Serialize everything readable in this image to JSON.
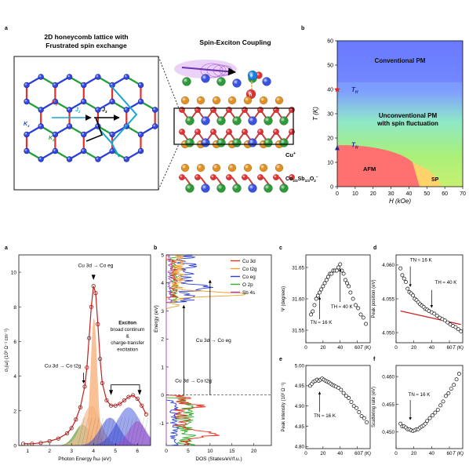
{
  "top": {
    "panel_a_label": "a",
    "panel_b_label": "b",
    "lattice_title_line1": "2D honeycomb lattice with",
    "lattice_title_line2": "Frustrated spin exchange",
    "coupling_title": "Spin-Exciton Coupling",
    "bond_labels": [
      "K",
      "J",
      "J",
      "K",
      "K"
    ],
    "bond_subs": [
      "y",
      "2",
      "3",
      "x",
      "z"
    ],
    "cu_label": "Cu",
    "cu_charge": "+",
    "layer_label": "Co",
    "layer_rest": "Sb",
    "layer_o": "O",
    "exciton_e": "e",
    "exciton_h": "h"
  },
  "phase": {
    "ylabel": "T (K)",
    "xlabel": "H (kOe)",
    "xticks": [
      "0",
      "10",
      "20",
      "30",
      "40",
      "50",
      "60",
      "70"
    ],
    "yticks": [
      "0",
      "10",
      "20",
      "30",
      "40",
      "50",
      "60"
    ],
    "region_pm": "Conventional PM",
    "region_upm_1": "Unconventional PM",
    "region_upm_2": "with spin fluctuation",
    "region_afm": "AFM",
    "region_sp": "SP",
    "th_label": "T",
    "th_sub": "H",
    "tn_label": "T",
    "tn_sub": "N",
    "th_value": 40,
    "tn_value": 16
  },
  "bottom": {
    "label_a": "a",
    "label_b": "b",
    "label_c": "c",
    "label_d": "d",
    "label_e": "e",
    "label_f": "f",
    "opt": {
      "ylabel": "σ₁(ω) (10³ Ω⁻¹ cm⁻¹)",
      "xlabel": "Photon Energy ħω (eV)",
      "xticks": [
        "1",
        "2",
        "3",
        "4",
        "5",
        "6"
      ],
      "yticks": [
        "0",
        "2",
        "4",
        "6",
        "8",
        "10"
      ],
      "ann_eg": "Cu 3d → Co eg",
      "ann_t2g": "Cu 3d → Co t2g",
      "ann_exc1": "Exciton",
      "ann_exc2": "broad continum",
      "ann_exc3": "&",
      "ann_exc4": "charge-transfer",
      "ann_exc5": "excitation"
    },
    "dos": {
      "ylabel": "Energy (eV)",
      "xlabel": "DOS (States/eV/f.u.)",
      "xticks": [
        "0",
        "5",
        "10",
        "15",
        "20"
      ],
      "yticks": [
        "-1",
        "0",
        "1",
        "2",
        "3",
        "4",
        "5"
      ],
      "legend": [
        "Cu 3d",
        "Co t2g",
        "Co eg",
        "O 2p",
        "Sb 4s"
      ],
      "legend_colors": [
        "#e8311c",
        "#f0a030",
        "#2b3fd6",
        "#2bb02b",
        "#a24fc8"
      ],
      "arrow1": "Cu 3d → Co t2g",
      "arrow2": "Cu 3d → Co eg"
    },
    "c": {
      "ylabel": "Ψ (degrees)",
      "xlabel": "T (K)",
      "yticks": [
        "31.55",
        "31.60",
        "31.65"
      ],
      "xticks": [
        "0",
        "20",
        "40",
        "60"
      ],
      "ann_tn": "TN ≈ 16 K",
      "ann_th": "TH ≈ 40 K"
    },
    "d": {
      "ylabel": "Peak position (eV)",
      "xlabel": "T (K)",
      "yticks": [
        "4.050",
        "4.055",
        "4.060"
      ],
      "xticks": [
        "0",
        "20",
        "40",
        "60"
      ],
      "ann_tn": "TN ≈ 16 K",
      "ann_th": "TH ≈ 40 K"
    },
    "e": {
      "ylabel": "Peak intensity (10³ Ω⁻¹)",
      "xlabel": "T (K)",
      "yticks": [
        "4.80",
        "4.85",
        "4.90",
        "4.95",
        "5.00"
      ],
      "xticks": [
        "0",
        "20",
        "40",
        "60"
      ],
      "ann_tn": "TN ≈ 16 K"
    },
    "f": {
      "ylabel": "Scattering rate (eV)",
      "xlabel": "T (K)",
      "yticks": [
        "0.450",
        "0.455",
        "0.460"
      ],
      "xticks": [
        "0",
        "20",
        "40",
        "60"
      ],
      "ann_tn": "TN ≈ 16 K"
    }
  },
  "chart_data": [
    {
      "type": "heatmap",
      "title": "",
      "xlabel": "H (kOe)",
      "ylabel": "T (K)",
      "xlim": [
        0,
        70
      ],
      "ylim": [
        0,
        60
      ],
      "regions": [
        "Conventional PM",
        "Unconventional PM with spin fluctuation",
        "AFM",
        "SP"
      ],
      "markers": [
        {
          "name": "TH",
          "x": 0,
          "y": 40
        },
        {
          "name": "TN",
          "x": 0,
          "y": 16
        }
      ]
    },
    {
      "type": "line",
      "xlabel": "Photon Energy ħω (eV)",
      "ylabel": "σ₁(ω) (10³ Ω⁻¹ cm⁻¹)",
      "xlim": [
        0.6,
        6.6
      ],
      "ylim": [
        0,
        11
      ],
      "x": [
        0.8,
        1.2,
        1.6,
        2.0,
        2.4,
        2.8,
        3.0,
        3.2,
        3.4,
        3.6,
        3.7,
        3.8,
        3.9,
        4.0,
        4.1,
        4.2,
        4.3,
        4.4,
        4.6,
        4.8,
        5.0,
        5.2,
        5.4,
        5.6,
        5.8,
        6.0,
        6.2,
        6.4
      ],
      "series": [
        {
          "values": [
            0.1,
            0.1,
            0.15,
            0.25,
            0.4,
            0.7,
            1.0,
            1.5,
            2.2,
            3.4,
            4.5,
            6.2,
            8.0,
            9.2,
            8.8,
            7.0,
            5.0,
            3.6,
            2.6,
            2.3,
            2.3,
            2.4,
            2.6,
            2.8,
            2.9,
            2.7,
            2.3,
            1.8
          ]
        }
      ]
    },
    {
      "type": "scatter",
      "xlabel": "T (K)",
      "ylabel": "Ψ (degrees)",
      "xlim": [
        0,
        75
      ],
      "ylim": [
        31.53,
        31.67
      ],
      "x": [
        6,
        8,
        10,
        12,
        14,
        16,
        18,
        20,
        22,
        24,
        26,
        28,
        30,
        32,
        34,
        36,
        38,
        40,
        42,
        44,
        46,
        48,
        50,
        52,
        55,
        58,
        61,
        64,
        67,
        70
      ],
      "series": [
        {
          "values": [
            31.575,
            31.58,
            31.59,
            31.6,
            31.605,
            31.61,
            31.615,
            31.62,
            31.625,
            31.63,
            31.635,
            31.64,
            31.64,
            31.645,
            31.645,
            31.645,
            31.65,
            31.655,
            31.645,
            31.64,
            31.63,
            31.625,
            31.62,
            31.61,
            31.6,
            31.59,
            31.585,
            31.575,
            31.57,
            31.56
          ]
        }
      ]
    },
    {
      "type": "scatter",
      "xlabel": "T (K)",
      "ylabel": "Peak position (eV)",
      "xlim": [
        0,
        75
      ],
      "ylim": [
        4.0485,
        4.0615
      ],
      "x": [
        5,
        7,
        9,
        11,
        13,
        15,
        17,
        19,
        21,
        23,
        25,
        27,
        29,
        31,
        33,
        35,
        37,
        40,
        43,
        46,
        49,
        52,
        55,
        58,
        61,
        64,
        67,
        70,
        73
      ],
      "series": [
        {
          "values": [
            4.0595,
            4.0585,
            4.058,
            4.0575,
            4.0565,
            4.056,
            4.0558,
            4.0555,
            4.055,
            4.0548,
            4.0545,
            4.0542,
            4.054,
            4.0538,
            4.0535,
            4.0534,
            4.0532,
            4.053,
            4.0528,
            4.0525,
            4.0522,
            4.052,
            4.0518,
            4.0515,
            4.0512,
            4.051,
            4.0508,
            4.0505,
            4.0502
          ]
        }
      ]
    },
    {
      "type": "scatter",
      "xlabel": "T (K)",
      "ylabel": "Peak intensity (10³ Ω⁻¹)",
      "xlim": [
        0,
        75
      ],
      "ylim": [
        4.795,
        5.0
      ],
      "x": [
        5,
        7,
        9,
        11,
        13,
        15,
        17,
        19,
        21,
        23,
        25,
        27,
        29,
        31,
        33,
        35,
        38,
        41,
        44,
        47,
        50,
        53,
        56,
        59,
        62,
        65,
        68,
        71
      ],
      "series": [
        {
          "values": [
            4.95,
            4.955,
            4.96,
            4.962,
            4.965,
            4.962,
            4.965,
            4.968,
            4.965,
            4.962,
            4.96,
            4.958,
            4.955,
            4.952,
            4.95,
            4.948,
            4.945,
            4.94,
            4.932,
            4.925,
            4.92,
            4.91,
            4.9,
            4.895,
            4.885,
            4.875,
            4.87,
            4.86
          ]
        }
      ]
    },
    {
      "type": "scatter",
      "xlabel": "T (K)",
      "ylabel": "Scattering rate (eV)",
      "xlim": [
        0,
        75
      ],
      "ylim": [
        0.447,
        0.462
      ],
      "x": [
        5,
        7,
        9,
        11,
        13,
        15,
        17,
        19,
        21,
        23,
        25,
        27,
        29,
        31,
        33,
        35,
        38,
        41,
        44,
        47,
        50,
        53,
        56,
        59,
        62,
        65,
        68,
        71
      ],
      "series": [
        {
          "values": [
            0.4515,
            0.451,
            0.451,
            0.4508,
            0.4505,
            0.4505,
            0.4503,
            0.4502,
            0.4503,
            0.4505,
            0.4505,
            0.4508,
            0.451,
            0.4512,
            0.4515,
            0.452,
            0.4525,
            0.453,
            0.4535,
            0.454,
            0.4548,
            0.4555,
            0.4565,
            0.457,
            0.4578,
            0.4585,
            0.4595,
            0.4605
          ]
        }
      ]
    }
  ]
}
